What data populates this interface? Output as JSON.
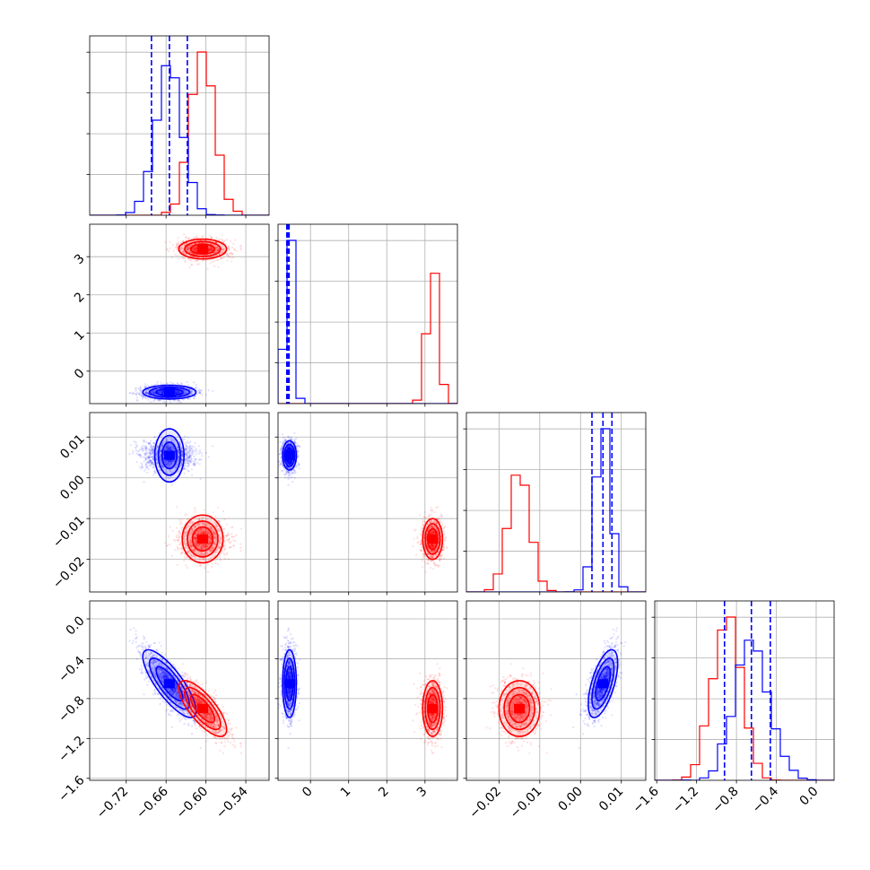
{
  "chart_data": {
    "type": "corner",
    "grid": true,
    "colors": {
      "series_a": "#0000ff",
      "series_b": "#ff0000",
      "quantile_line": "#0000ff"
    },
    "parameters": [
      {
        "range": [
          -0.775,
          -0.505
        ],
        "ticks": [
          -0.72,
          -0.66,
          -0.6,
          -0.54
        ],
        "tick_labels": [
          "−0.72",
          "−0.66",
          "−0.60",
          "−0.54"
        ]
      },
      {
        "range": [
          -0.85,
          3.85
        ],
        "ticks": [
          0,
          1,
          2,
          3
        ],
        "tick_labels": [
          "0",
          "1",
          "2",
          "3"
        ]
      },
      {
        "range": [
          -0.028,
          0.016
        ],
        "ticks": [
          -0.02,
          -0.01,
          0.0,
          0.01
        ],
        "tick_labels": [
          "−0.02",
          "−0.01",
          "0.00",
          "0.01"
        ]
      },
      {
        "range": [
          -1.62,
          0.18
        ],
        "ticks": [
          -1.6,
          -1.2,
          -0.8,
          -0.4,
          0.0
        ],
        "tick_labels": [
          "−1.6",
          "−1.2",
          "−0.8",
          "−0.4",
          "0.0"
        ]
      }
    ],
    "series": [
      {
        "color": "#0000ff",
        "mean": [
          -0.655,
          -0.55,
          0.0055,
          -0.65
        ],
        "std": [
          0.02,
          0.09,
          0.0018,
          0.17
        ],
        "corr": [
          [
            1,
            0,
            0,
            -0.8
          ],
          [
            0,
            1,
            0,
            0
          ],
          [
            0,
            0,
            1,
            0.6
          ],
          [
            -0.8,
            0,
            0.6,
            1
          ]
        ]
      },
      {
        "color": "#ff0000",
        "mean": [
          -0.605,
          3.2,
          -0.015,
          -0.9
        ],
        "std": [
          0.018,
          0.13,
          0.0025,
          0.14
        ],
        "corr": [
          [
            1,
            0,
            0,
            -0.75
          ],
          [
            0,
            1,
            0,
            0
          ],
          [
            0,
            0,
            1,
            0
          ],
          [
            -0.75,
            0,
            0,
            1
          ]
        ]
      }
    ],
    "quantiles": [
      [
        -0.682,
        -0.655,
        -0.628
      ],
      [
        -0.62,
        -0.585,
        -0.56
      ],
      [
        0.0028,
        0.0055,
        0.0077
      ],
      [
        -0.92,
        -0.65,
        -0.46
      ]
    ]
  }
}
